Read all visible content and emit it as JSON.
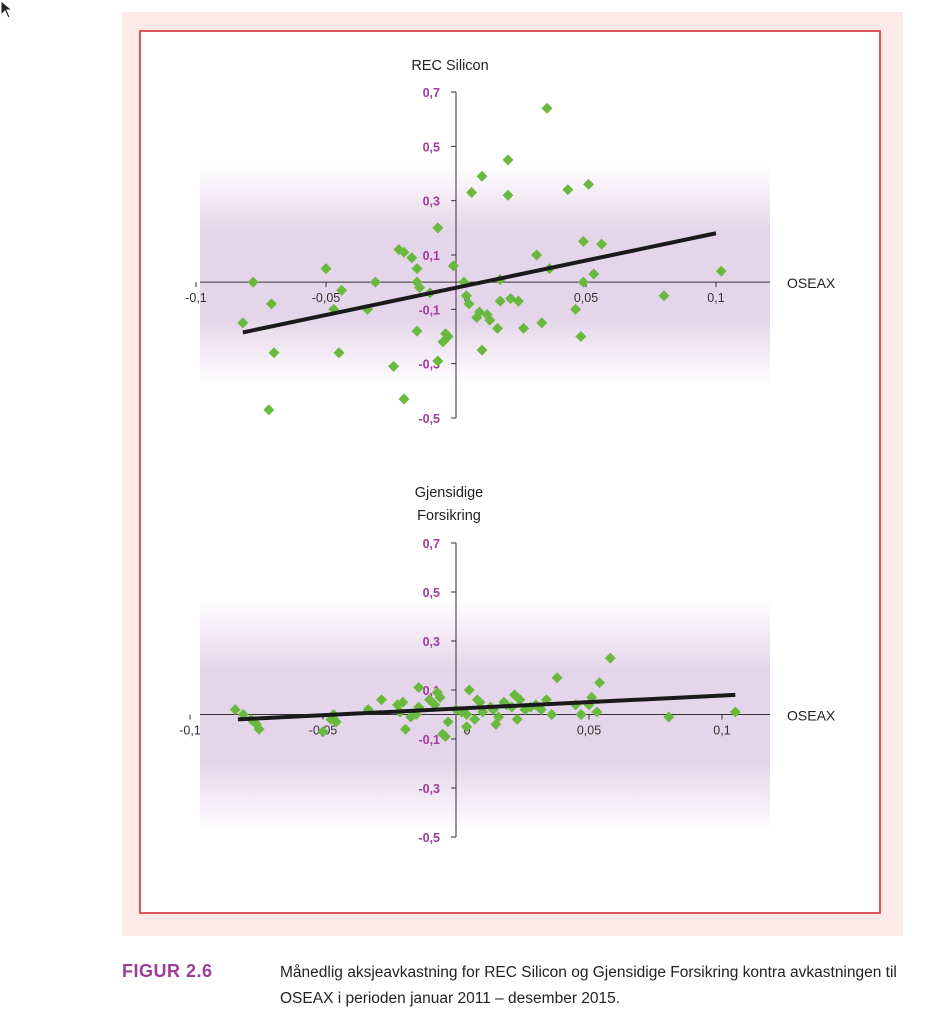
{
  "figure": {
    "label": "FIGUR 2.6",
    "caption": "Månedlig aksjeavkastning for REC Silicon og Gjensidige Forsikring kontra avkastningen til OSEAX i perioden januar 2011 – desember 2015."
  },
  "colors": {
    "panel_bg": "#fdeae8",
    "frame_border": "#e0555d",
    "marker": "#6ab93f",
    "y_tick_label": "#a2399b",
    "band": "#e5d5ea",
    "trend_line": "#1a1a1a",
    "caption_label": "#9c3d96"
  },
  "chart_data": [
    {
      "type": "scatter",
      "title": "REC Silicon",
      "xlabel": "OSEAX",
      "ylabel": "",
      "xlim": [
        -0.1,
        0.12
      ],
      "ylim": [
        -0.5,
        0.7
      ],
      "x_ticks": [
        -0.1,
        -0.05,
        0,
        0.05,
        0.1
      ],
      "x_tick_labels": [
        "-0,1",
        "-0,05",
        "0",
        "0,05",
        "0,1"
      ],
      "y_ticks": [
        0.7,
        0.5,
        0.3,
        0.1,
        -0.1,
        -0.3,
        -0.5
      ],
      "y_tick_labels": [
        "0,7",
        "0,5",
        "0,3",
        "0,1",
        "-0,1",
        "-0,3",
        "-0,5"
      ],
      "grid": false,
      "trend_line": {
        "x": [
          -0.082,
          0.1
        ],
        "y": [
          -0.185,
          0.18
        ]
      },
      "points": [
        [
          -0.082,
          -0.15
        ],
        [
          -0.078,
          0.0
        ],
        [
          -0.072,
          -0.47
        ],
        [
          -0.071,
          -0.08
        ],
        [
          -0.07,
          -0.26
        ],
        [
          -0.05,
          0.05
        ],
        [
          -0.047,
          -0.1
        ],
        [
          -0.045,
          -0.26
        ],
        [
          -0.044,
          -0.03
        ],
        [
          -0.034,
          -0.1
        ],
        [
          -0.031,
          0.0
        ],
        [
          -0.024,
          -0.31
        ],
        [
          -0.022,
          0.12
        ],
        [
          -0.02,
          0.11
        ],
        [
          -0.02,
          -0.43
        ],
        [
          -0.017,
          0.09
        ],
        [
          -0.015,
          0.05
        ],
        [
          -0.015,
          0.0
        ],
        [
          -0.014,
          -0.02
        ],
        [
          -0.015,
          -0.18
        ],
        [
          -0.01,
          -0.04
        ],
        [
          -0.007,
          0.2
        ],
        [
          -0.007,
          -0.29
        ],
        [
          -0.005,
          -0.22
        ],
        [
          -0.004,
          -0.19
        ],
        [
          -0.003,
          -0.2
        ],
        [
          -0.001,
          0.06
        ],
        [
          0.003,
          0.0
        ],
        [
          0.004,
          -0.05
        ],
        [
          0.005,
          -0.08
        ],
        [
          0.006,
          0.33
        ],
        [
          0.008,
          -0.13
        ],
        [
          0.009,
          -0.11
        ],
        [
          0.01,
          0.39
        ],
        [
          0.01,
          -0.25
        ],
        [
          0.012,
          -0.12
        ],
        [
          0.013,
          -0.14
        ],
        [
          0.016,
          -0.17
        ],
        [
          0.017,
          -0.07
        ],
        [
          0.017,
          0.01
        ],
        [
          0.02,
          0.32
        ],
        [
          0.02,
          0.45
        ],
        [
          0.021,
          -0.06
        ],
        [
          0.024,
          -0.07
        ],
        [
          0.026,
          -0.17
        ],
        [
          0.031,
          0.1
        ],
        [
          0.033,
          -0.15
        ],
        [
          0.035,
          0.64
        ],
        [
          0.036,
          0.05
        ],
        [
          0.043,
          0.34
        ],
        [
          0.046,
          -0.1
        ],
        [
          0.048,
          -0.2
        ],
        [
          0.049,
          0.0
        ],
        [
          0.049,
          0.15
        ],
        [
          0.051,
          0.36
        ],
        [
          0.053,
          0.03
        ],
        [
          0.056,
          0.14
        ],
        [
          0.08,
          -0.05
        ],
        [
          0.102,
          0.04
        ]
      ]
    },
    {
      "type": "scatter",
      "title": "Gjensidige Forsikring",
      "xlabel": "OSEAX",
      "ylabel": "",
      "xlim": [
        -0.1,
        0.12
      ],
      "ylim": [
        -0.5,
        0.7
      ],
      "x_ticks": [
        -0.1,
        -0.05,
        0,
        0.05,
        0.1
      ],
      "x_tick_labels": [
        "-0,1",
        "-0,05",
        "0",
        "0,05",
        "0,1"
      ],
      "y_ticks": [
        0.7,
        0.5,
        0.3,
        0.1,
        -0.1,
        -0.3,
        -0.5
      ],
      "y_tick_labels": [
        "0,7",
        "0,5",
        "0,3",
        "0,1",
        "-0,1",
        "-0,3",
        "-0,5"
      ],
      "grid": false,
      "trend_line": {
        "x": [
          -0.082,
          0.105
        ],
        "y": [
          -0.02,
          0.08
        ]
      },
      "points": [
        [
          -0.083,
          0.02
        ],
        [
          -0.08,
          0.0
        ],
        [
          -0.077,
          -0.02
        ],
        [
          -0.075,
          -0.04
        ],
        [
          -0.074,
          -0.06
        ],
        [
          -0.05,
          -0.07
        ],
        [
          -0.047,
          -0.02
        ],
        [
          -0.046,
          0.0
        ],
        [
          -0.045,
          -0.03
        ],
        [
          -0.033,
          0.02
        ],
        [
          -0.028,
          0.06
        ],
        [
          -0.022,
          0.04
        ],
        [
          -0.021,
          0.01
        ],
        [
          -0.02,
          0.05
        ],
        [
          -0.019,
          -0.06
        ],
        [
          -0.017,
          -0.01
        ],
        [
          -0.015,
          0.0
        ],
        [
          -0.014,
          0.03
        ],
        [
          -0.014,
          0.11
        ],
        [
          -0.01,
          0.06
        ],
        [
          -0.008,
          0.04
        ],
        [
          -0.007,
          0.09
        ],
        [
          -0.006,
          0.07
        ],
        [
          -0.005,
          -0.08
        ],
        [
          -0.004,
          -0.09
        ],
        [
          -0.003,
          -0.03
        ],
        [
          0.0,
          0.02
        ],
        [
          0.002,
          0.01
        ],
        [
          0.004,
          0.0
        ],
        [
          0.004,
          -0.05
        ],
        [
          0.005,
          0.1
        ],
        [
          0.007,
          -0.02
        ],
        [
          0.008,
          0.06
        ],
        [
          0.009,
          0.05
        ],
        [
          0.01,
          0.01
        ],
        [
          0.013,
          0.03
        ],
        [
          0.014,
          0.02
        ],
        [
          0.015,
          -0.04
        ],
        [
          0.016,
          -0.01
        ],
        [
          0.018,
          0.05
        ],
        [
          0.019,
          0.04
        ],
        [
          0.021,
          0.03
        ],
        [
          0.022,
          0.08
        ],
        [
          0.023,
          -0.02
        ],
        [
          0.024,
          0.06
        ],
        [
          0.026,
          0.02
        ],
        [
          0.028,
          0.03
        ],
        [
          0.03,
          0.04
        ],
        [
          0.032,
          0.02
        ],
        [
          0.034,
          0.06
        ],
        [
          0.036,
          0.0
        ],
        [
          0.038,
          0.15
        ],
        [
          0.045,
          0.04
        ],
        [
          0.047,
          0.0
        ],
        [
          0.05,
          0.04
        ],
        [
          0.051,
          0.07
        ],
        [
          0.053,
          0.01
        ],
        [
          0.054,
          0.13
        ],
        [
          0.058,
          0.23
        ],
        [
          0.08,
          -0.01
        ],
        [
          0.105,
          0.01
        ]
      ]
    }
  ]
}
